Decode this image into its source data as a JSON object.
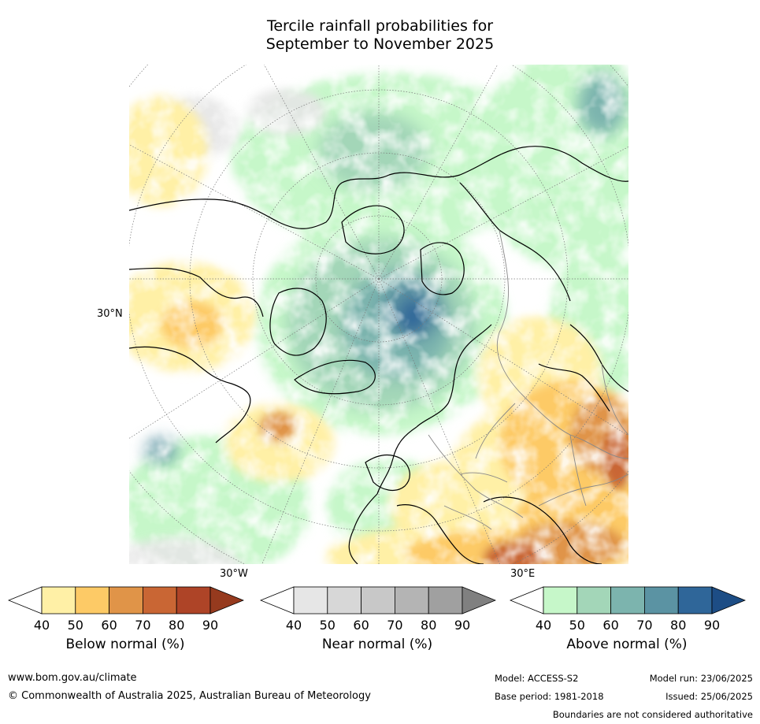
{
  "title_line1": "Tercile rainfall probabilities for",
  "title_line2": "September to November 2025",
  "map": {
    "lat_label": "30°N",
    "lon_label_left": "30°W",
    "lon_label_right": "30°E"
  },
  "colorbars": [
    {
      "label": "Below normal (%)",
      "ticks": [
        "40",
        "50",
        "60",
        "70",
        "80",
        "90"
      ],
      "low_color": "#ffffff",
      "colors": [
        "#fff0a6",
        "#fdca66",
        "#e09448",
        "#c96634",
        "#ae4427"
      ],
      "high_color": "#963a1e"
    },
    {
      "label": "Near normal (%)",
      "ticks": [
        "40",
        "50",
        "60",
        "70",
        "80",
        "90"
      ],
      "low_color": "#ffffff",
      "colors": [
        "#e6e6e6",
        "#d7d7d7",
        "#c8c8c8",
        "#b4b4b4",
        "#a0a0a0"
      ],
      "high_color": "#808080"
    },
    {
      "label": "Above normal (%)",
      "ticks": [
        "40",
        "50",
        "60",
        "70",
        "80",
        "90"
      ],
      "low_color": "#ffffff",
      "colors": [
        "#c6f7c9",
        "#a3d6b8",
        "#7cb4ae",
        "#5b93a3",
        "#2f6699"
      ],
      "high_color": "#1d4d85"
    }
  ],
  "footer": {
    "website": "www.bom.gov.au/climate",
    "copyright": "© Commonwealth of Australia 2025, Australian Bureau of Meteorology",
    "model": "Model: ACCESS-S2",
    "base_period": "Base period: 1981-2018",
    "model_run": "Model run: 23/06/2025",
    "issued": "Issued: 25/06/2025",
    "disclaimer": "Boundaries are not considered authoritative"
  }
}
